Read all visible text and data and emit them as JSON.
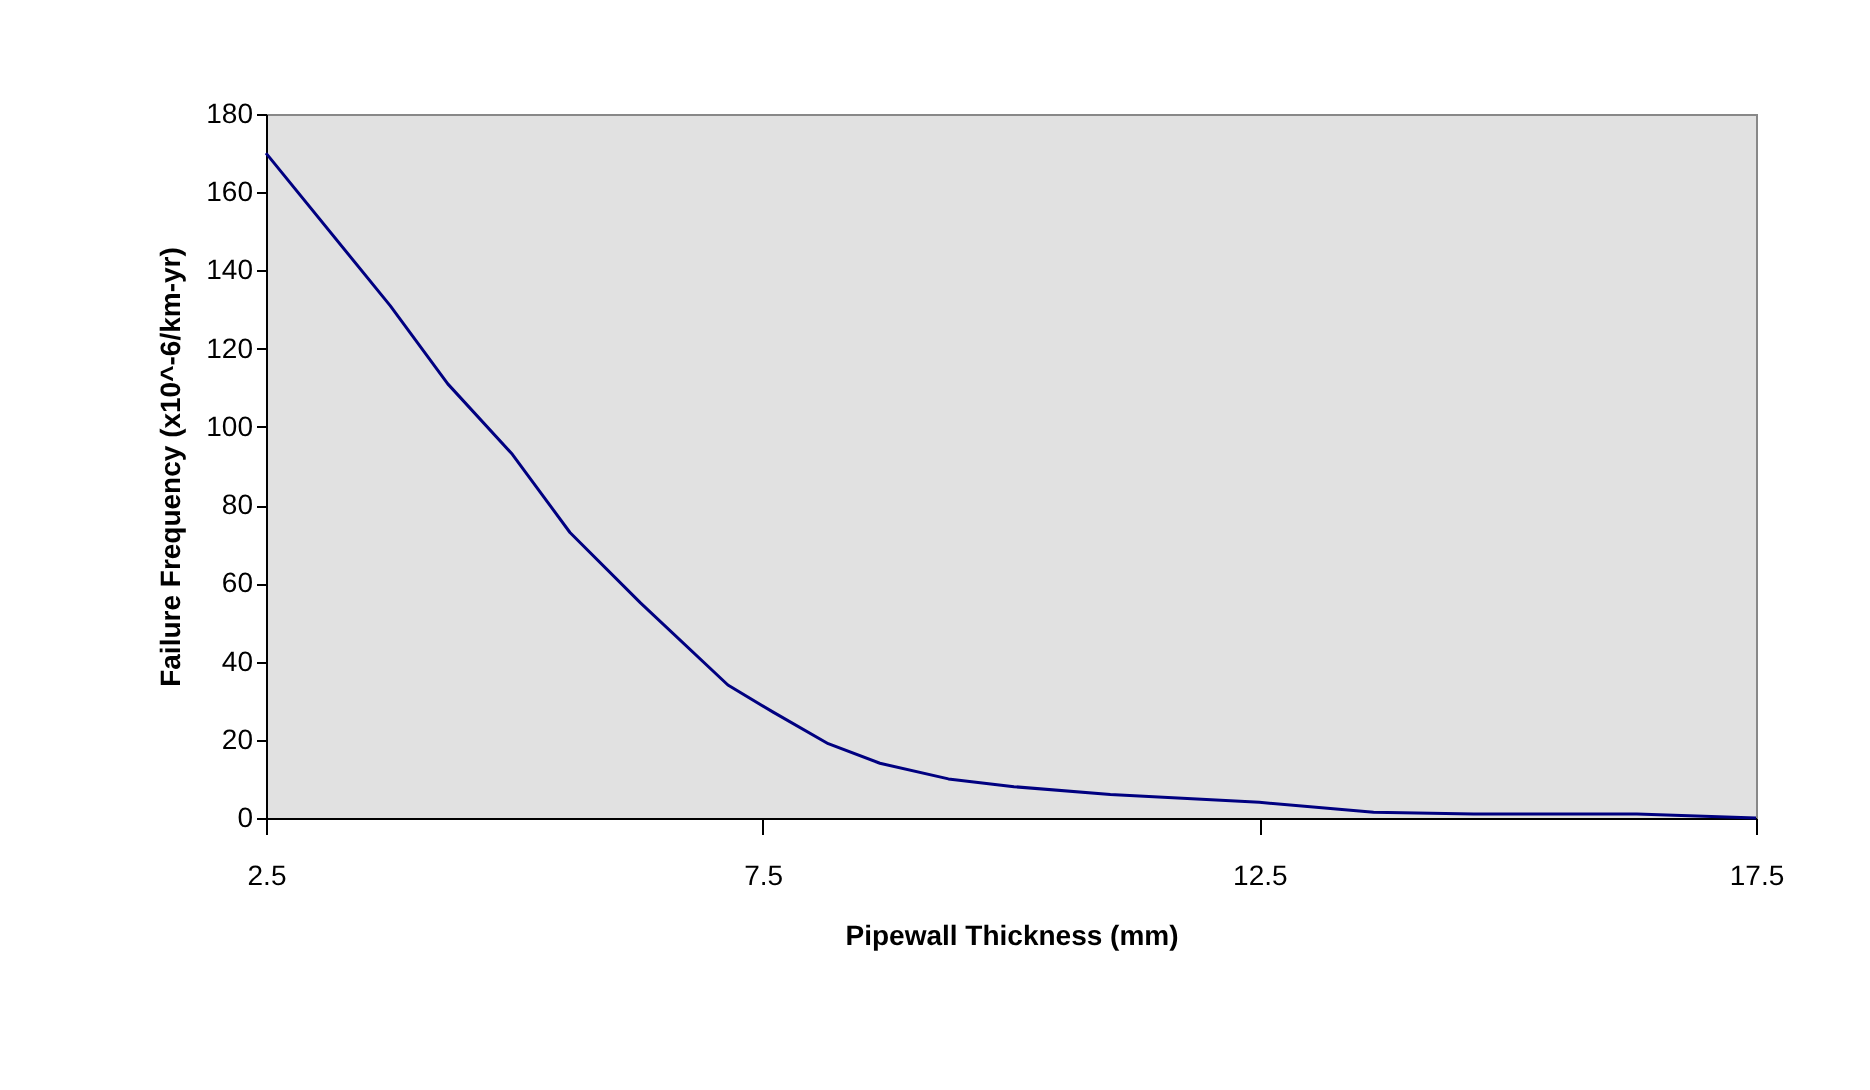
{
  "chart_data": {
    "type": "line",
    "xlabel": "Pipewall Thickness (mm)",
    "ylabel": "Failure Frequency (x10^-6/km-yr)",
    "x": [
      2.5,
      3.75,
      4.33,
      4.98,
      5.56,
      6.27,
      7.15,
      7.61,
      8.16,
      8.68,
      9.37,
      10.03,
      11,
      12.5,
      13.65,
      14.66,
      16.3,
      17.5
    ],
    "series": [
      {
        "color": "#000080",
        "values": [
          170,
          131,
          111,
          93,
          73,
          55,
          34,
          27,
          19,
          14,
          10,
          8,
          6,
          4,
          1.5,
          1,
          1,
          0
        ]
      }
    ],
    "xlim": [
      2.5,
      17.5
    ],
    "xticks": [
      2.5,
      7.5,
      12.5,
      17.5
    ],
    "ylim": [
      0,
      180
    ],
    "yticks": [
      0,
      20,
      40,
      60,
      80,
      100,
      120,
      140,
      160,
      180
    ],
    "grid": false,
    "marker": "none",
    "line_style": "solid"
  }
}
